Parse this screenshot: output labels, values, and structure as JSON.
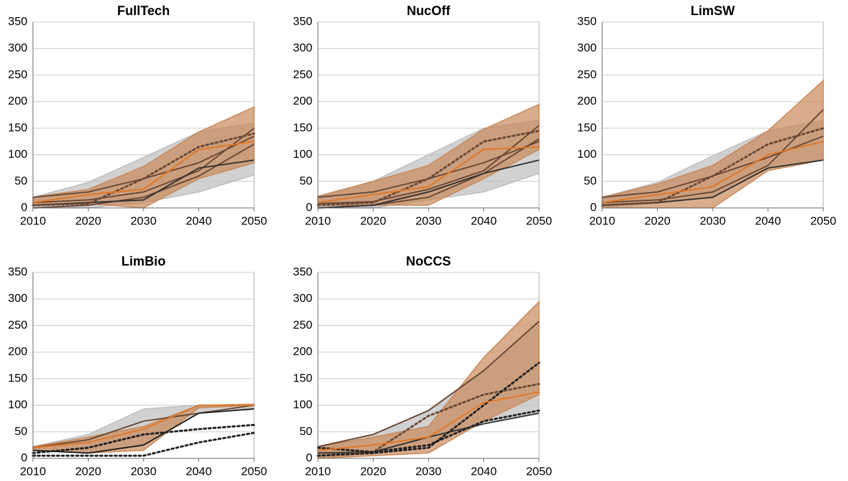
{
  "chart_data": [
    {
      "type": "line",
      "title": "FullTech",
      "x": [
        2010,
        2020,
        2030,
        2040,
        2050
      ],
      "xlim": [
        2010,
        2050
      ],
      "xticks": [
        2010,
        2020,
        2030,
        2040,
        2050
      ],
      "ylim": [
        0,
        350
      ],
      "yticks": [
        0,
        50,
        100,
        150,
        200,
        250,
        300,
        350
      ],
      "grid": true,
      "bands": [
        {
          "color": "#bdbdbd",
          "lower": [
            0,
            0,
            10,
            30,
            62
          ],
          "upper": [
            20,
            48,
            95,
            143,
            160
          ]
        },
        {
          "color": "#c9895a",
          "lower": [
            5,
            8,
            0,
            55,
            85
          ],
          "upper": [
            20,
            35,
            78,
            143,
            190
          ]
        }
      ],
      "series": [
        {
          "color": "#6b4a36",
          "values": [
            20,
            30,
            55,
            85,
            135
          ]
        },
        {
          "color": "#6b4a36",
          "values": [
            10,
            15,
            30,
            70,
            150
          ]
        },
        {
          "color": "#6b4a36",
          "values": [
            0,
            5,
            20,
            60,
            120
          ]
        },
        {
          "color": "#333333",
          "values": [
            5,
            10,
            15,
            75,
            90
          ]
        },
        {
          "color": "#6b4a36",
          "values": [
            5,
            8,
            55,
            115,
            140
          ],
          "dash": true
        },
        {
          "color": "#e07828",
          "values": [
            10,
            25,
            35,
            110,
            125
          ]
        }
      ]
    },
    {
      "type": "line",
      "title": "NucOff",
      "x": [
        2010,
        2020,
        2030,
        2040,
        2050
      ],
      "xlim": [
        2010,
        2050
      ],
      "xticks": [
        2010,
        2020,
        2030,
        2040,
        2050
      ],
      "ylim": [
        0,
        350
      ],
      "yticks": [
        0,
        50,
        100,
        150,
        200,
        250,
        300,
        350
      ],
      "grid": true,
      "bands": [
        {
          "color": "#bdbdbd",
          "lower": [
            0,
            0,
            15,
            30,
            65
          ],
          "upper": [
            22,
            50,
            100,
            150,
            165
          ]
        },
        {
          "color": "#c9895a",
          "lower": [
            5,
            5,
            5,
            55,
            110
          ],
          "upper": [
            22,
            50,
            80,
            148,
            195
          ]
        }
      ],
      "series": [
        {
          "color": "#6b4a36",
          "values": [
            20,
            30,
            55,
            85,
            125
          ]
        },
        {
          "color": "#6b4a36",
          "values": [
            8,
            12,
            35,
            70,
            155
          ]
        },
        {
          "color": "#6b4a36",
          "values": [
            0,
            5,
            20,
            65,
            130
          ]
        },
        {
          "color": "#333333",
          "values": [
            0,
            5,
            30,
            65,
            90
          ]
        },
        {
          "color": "#6b4a36",
          "values": [
            5,
            10,
            55,
            125,
            145
          ],
          "dash": true
        },
        {
          "color": "#e07828",
          "values": [
            10,
            25,
            40,
            110,
            115
          ]
        }
      ]
    },
    {
      "type": "line",
      "title": "LimSW",
      "x": [
        2010,
        2020,
        2030,
        2040,
        2050
      ],
      "xlim": [
        2010,
        2050
      ],
      "xticks": [
        2010,
        2020,
        2030,
        2040,
        2050
      ],
      "ylim": [
        0,
        350
      ],
      "yticks": [
        0,
        50,
        100,
        150,
        200,
        250,
        300,
        350
      ],
      "grid": true,
      "bands": [
        {
          "color": "#bdbdbd",
          "lower": [
            0,
            10,
            20,
            75,
            90
          ],
          "upper": [
            20,
            48,
            98,
            145,
            165
          ]
        },
        {
          "color": "#c9895a",
          "lower": [
            0,
            0,
            0,
            70,
            90
          ],
          "upper": [
            20,
            45,
            80,
            145,
            240
          ]
        }
      ],
      "series": [
        {
          "color": "#6b4a36",
          "values": [
            20,
            30,
            60,
            95,
            135
          ]
        },
        {
          "color": "#6b4a36",
          "values": [
            10,
            15,
            30,
            80,
            185
          ]
        },
        {
          "color": "#333333",
          "values": [
            5,
            10,
            20,
            75,
            90
          ]
        },
        {
          "color": "#6b4a36",
          "values": [
            5,
            10,
            60,
            120,
            150
          ],
          "dash": true
        },
        {
          "color": "#e07828",
          "values": [
            10,
            25,
            40,
            100,
            125
          ]
        }
      ]
    },
    {
      "type": "line",
      "title": "LimBio",
      "x": [
        2010,
        2020,
        2030,
        2040,
        2050
      ],
      "xlim": [
        2010,
        2050
      ],
      "xticks": [
        2010,
        2020,
        2030,
        2040,
        2050
      ],
      "ylim": [
        0,
        350
      ],
      "yticks": [
        0,
        50,
        100,
        150,
        200,
        250,
        300,
        350
      ],
      "grid": true,
      "bands": [
        {
          "color": "#bdbdbd",
          "lower": [
            15,
            10,
            25,
            85,
            95
          ],
          "upper": [
            22,
            45,
            93,
            100,
            100
          ]
        },
        {
          "color": "#c9895a",
          "lower": [
            15,
            10,
            15,
            95,
            100
          ],
          "upper": [
            22,
            40,
            60,
            100,
            102
          ]
        }
      ],
      "series": [
        {
          "color": "#6b4a36",
          "values": [
            20,
            35,
            70,
            85,
            100
          ]
        },
        {
          "color": "#222222",
          "values": [
            15,
            10,
            25,
            85,
            93
          ]
        },
        {
          "color": "#222222",
          "values": [
            5,
            5,
            5,
            30,
            48
          ],
          "dash": true
        },
        {
          "color": "#222222",
          "values": [
            10,
            20,
            45,
            55,
            63
          ],
          "dash": true
        },
        {
          "color": "#e07828",
          "values": [
            20,
            30,
            55,
            100,
            100
          ]
        }
      ]
    },
    {
      "type": "line",
      "title": "NoCCS",
      "x": [
        2010,
        2020,
        2030,
        2040,
        2050
      ],
      "xlim": [
        2010,
        2050
      ],
      "xticks": [
        2010,
        2020,
        2030,
        2040,
        2050
      ],
      "ylim": [
        0,
        350
      ],
      "yticks": [
        0,
        50,
        100,
        150,
        200,
        250,
        300,
        350
      ],
      "grid": true,
      "bands": [
        {
          "color": "#bdbdbd",
          "lower": [
            0,
            10,
            30,
            65,
            85
          ],
          "upper": [
            22,
            45,
            90,
            165,
            258
          ]
        },
        {
          "color": "#c9895a",
          "lower": [
            0,
            5,
            10,
            70,
            120
          ],
          "upper": [
            22,
            40,
            60,
            190,
            295
          ]
        }
      ],
      "series": [
        {
          "color": "#6b4a36",
          "values": [
            22,
            45,
            90,
            165,
            258
          ]
        },
        {
          "color": "#333333",
          "values": [
            10,
            12,
            40,
            65,
            85
          ]
        },
        {
          "color": "#6b4a36",
          "values": [
            5,
            12,
            80,
            120,
            140
          ],
          "dash": true
        },
        {
          "color": "#222222",
          "values": [
            5,
            10,
            20,
            100,
            180
          ],
          "dash": true
        },
        {
          "color": "#222222",
          "values": [
            20,
            12,
            25,
            70,
            90
          ],
          "dash": true
        },
        {
          "color": "#e07828",
          "values": [
            15,
            25,
            40,
            105,
            125
          ]
        }
      ]
    }
  ]
}
